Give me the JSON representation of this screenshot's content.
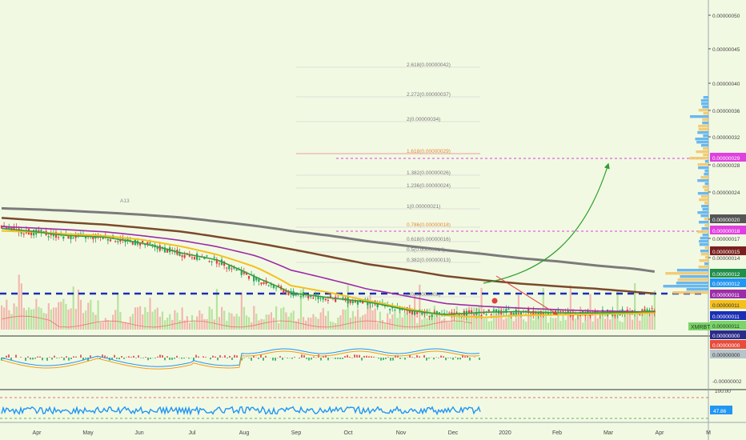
{
  "chart_data": [
    {
      "type": "candlestick",
      "panel": "price",
      "symbol_label": "XMRBTC",
      "x_ticks": [
        "Apr",
        "May",
        "Jun",
        "Jul",
        "Aug",
        "Sep",
        "Oct",
        "Nov",
        "Dec",
        "2020",
        "Feb",
        "Mar",
        "Apr",
        "M"
      ],
      "y_ticks": [
        "0.00000050",
        "0.00000045",
        "0.00000040",
        "0.00000036",
        "0.00000032",
        "0.00000028",
        "0.00000024",
        "0.00000020",
        "0.00000017",
        "0.00000014"
      ],
      "ylim": [
        1e-07,
        5e-07
      ],
      "close_series": {
        "dates": [
          "2019-03-20",
          "2019-04-01",
          "2019-04-15",
          "2019-05-01",
          "2019-05-15",
          "2019-06-01",
          "2019-06-15",
          "2019-07-01",
          "2019-07-15",
          "2019-08-01",
          "2019-08-15",
          "2019-09-01",
          "2019-09-15",
          "2019-10-01",
          "2019-10-15",
          "2019-11-01",
          "2019-11-15",
          "2019-12-01",
          "2019-12-10"
        ],
        "values": [
          3.75e-07,
          3.55e-07,
          3.35e-07,
          3.3e-07,
          3.05e-07,
          2.62e-07,
          2.4e-07,
          1.85e-07,
          1.52e-07,
          1.42e-07,
          1.35e-07,
          1.2e-07,
          1.13e-07,
          1.18e-07,
          1.19e-07,
          1.17e-07,
          1.17e-07,
          1.18e-07,
          1.2e-07
        ]
      },
      "moving_averages": [
        {
          "color": "#7b7b7b",
          "values": [
            4.9e-07,
            4.84e-07,
            4.75e-07,
            4.62e-07,
            4.5e-07,
            4.32e-07,
            4.1e-07,
            3.85e-07,
            3.6e-07,
            3.35e-07,
            3.12e-07,
            2.92e-07,
            2.77e-07,
            2.62e-07,
            2.48e-07,
            2.36e-07,
            2.24e-07,
            2.14e-07,
            2.05e-07
          ]
        },
        {
          "color": "#7a4a2a",
          "values": [
            4.3e-07,
            4.18e-07,
            4.05e-07,
            3.92e-07,
            3.76e-07,
            3.56e-07,
            3.32e-07,
            3.05e-07,
            2.8e-07,
            2.5e-07,
            2.28e-07,
            2.1e-07,
            1.94e-07,
            1.83e-07,
            1.75e-07,
            1.68e-07,
            1.63e-07,
            1.56e-07,
            1.52e-07
          ]
        },
        {
          "color": "#9c2da8",
          "values": [
            3.82e-07,
            3.75e-07,
            3.66e-07,
            3.55e-07,
            3.38e-07,
            3.15e-07,
            2.9e-07,
            2.55e-07,
            2.1e-07,
            1.83e-07,
            1.62e-07,
            1.46e-07,
            1.33e-07,
            1.28e-07,
            1.25e-07,
            1.22e-07,
            1.2e-07,
            1.19e-07,
            1.18e-07
          ]
        },
        {
          "color": "#f4c01e",
          "values": [
            3.6e-07,
            3.55e-07,
            3.45e-07,
            3.36e-07,
            3.2e-07,
            2.9e-07,
            2.6e-07,
            2.18e-07,
            1.7e-07,
            1.53e-07,
            1.38e-07,
            1.23e-07,
            1.13e-07,
            1.1e-07,
            1.13e-07,
            1.14e-07,
            1.15e-07,
            1.16e-07,
            1.17e-07
          ]
        },
        {
          "color": "#3c9a3c",
          "values": [
            3.72e-07,
            3.58e-07,
            3.38e-07,
            3.3e-07,
            3.06e-07,
            2.65e-07,
            2.42e-07,
            1.9e-07,
            1.54e-07,
            1.43e-07,
            1.36e-07,
            1.21e-07,
            1.14e-07,
            1.18e-07,
            1.19e-07,
            1.17e-07,
            1.17e-07,
            1.18e-07,
            1.2e-07
          ]
        }
      ],
      "fibonacci_levels": [
        "2.618(0.00000042)",
        "2.272(0.00000037)",
        "2(0.00000034)",
        "1.618(0.00000029)",
        "1.382(0.00000026)",
        "1.236(0.00000024)",
        "1(0.00000021)",
        "0.786(0.00000018)",
        "0.618(0.00000016)",
        "0.5(0.00000014)",
        "0.382(0.00000013)",
        "0(0.00000008)"
      ],
      "annotation_label": "A13",
      "price_labels": [
        {
          "text": "0.00000029",
          "bg": "#e040e0",
          "fg": "#ffffff"
        },
        {
          "text": "0.00000020",
          "bg": "#555555",
          "fg": "#ffffff"
        },
        {
          "text": "0.00000018",
          "bg": "#e040e0",
          "fg": "#ffffff"
        },
        {
          "text": "0.00000015",
          "bg": "#7a1f1f",
          "fg": "#ffffff"
        },
        {
          "text": "0.00000012",
          "bg": "#1f8f4a",
          "fg": "#ffffff"
        },
        {
          "text": "0.00000012",
          "bg": "#2196f3",
          "fg": "#ffffff"
        },
        {
          "text": "0.00000011",
          "bg": "#9c2da8",
          "fg": "#ffffff"
        },
        {
          "text": "0.00000011",
          "bg": "#f4c01e",
          "fg": "#333333"
        },
        {
          "text": "0.00000011",
          "bg": "#1a2fb5",
          "fg": "#ffffff"
        },
        {
          "text": "0.00000011",
          "bg": "#7cd36a",
          "fg": "#1a3a1a"
        },
        {
          "text": "0.00000000",
          "bg": "#2a2a8a",
          "fg": "#ffffff"
        }
      ]
    },
    {
      "type": "histogram",
      "panel": "macd",
      "y_ticks": [
        "0.00000000",
        "-0.00000002"
      ],
      "value_labels": [
        {
          "text": "0.00000000",
          "bg": "#e74c3c",
          "fg": "#ffffff"
        },
        {
          "text": "0.00000000",
          "bg": "#b7c4c9",
          "fg": "#333333"
        }
      ]
    },
    {
      "type": "line",
      "panel": "rsi",
      "y_ticks": [
        "100.00"
      ],
      "value_label": {
        "text": "47.86",
        "bg": "#2196f3",
        "fg": "#ffffff"
      }
    }
  ]
}
